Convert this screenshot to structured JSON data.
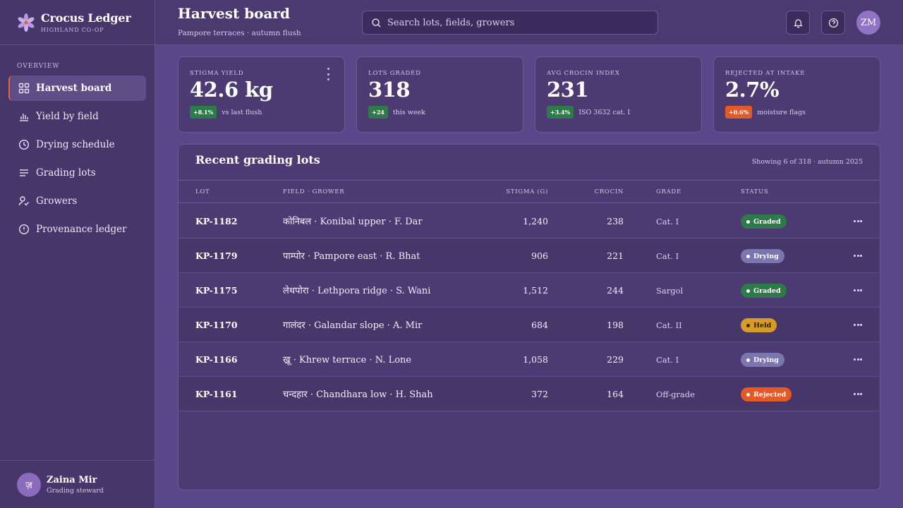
{
  "brand": {
    "name": "Crocus Ledger",
    "sub": "HIGHLAND CO-OP"
  },
  "sidebar": {
    "section": "OVERVIEW",
    "items": [
      {
        "label": "Harvest board",
        "icon": "grid-icon",
        "active": true
      },
      {
        "label": "Yield by field",
        "icon": "bar-chart-icon"
      },
      {
        "label": "Drying schedule",
        "icon": "clock-icon"
      },
      {
        "label": "Grading lots",
        "icon": "list-icon"
      },
      {
        "label": "Growers",
        "icon": "user-check-icon"
      },
      {
        "label": "Provenance ledger",
        "icon": "alert-circle-icon"
      }
    ]
  },
  "user": {
    "initial": "ज़",
    "name": "Zaina Mir",
    "role": "Grading steward"
  },
  "header": {
    "title": "Harvest board",
    "subtitle": "Pampore terraces · autumn flush",
    "search_placeholder": "Search lots, fields, growers",
    "avatar_initials": "ZM"
  },
  "stats": [
    {
      "label": "STIGMA YIELD",
      "value": "42.6 kg",
      "delta": "+8.1%",
      "delta_kind": "up",
      "foot": "vs last flush"
    },
    {
      "label": "LOTS GRADED",
      "value": "318",
      "delta": "+24",
      "delta_kind": "up",
      "foot": "this week"
    },
    {
      "label": "AVG CROCIN INDEX",
      "value": "231",
      "delta": "+3.4%",
      "delta_kind": "up",
      "foot": "ISO 3632 cat. I"
    },
    {
      "label": "REJECTED AT INTAKE",
      "value": "2.7%",
      "delta": "+0.6%",
      "delta_kind": "warn",
      "foot": "moisture flags"
    }
  ],
  "table": {
    "title": "Recent grading lots",
    "meta": "Showing 6 of 318 · autumn 2025",
    "columns": {
      "lot": "LOT",
      "field": "FIELD · GROWER",
      "stigma": "STIGMA (G)",
      "crocin": "CROCIN",
      "grade": "GRADE",
      "status": "STATUS"
    },
    "rows": [
      {
        "lot": "KP-1182",
        "field": "कोनिबल · Konibal upper · F. Dar",
        "stigma": "1,240",
        "crocin": "238",
        "grade": "Cat. I",
        "status": "Graded",
        "status_color": "#2f7a4a"
      },
      {
        "lot": "KP-1179",
        "field": "पाम्पोर · Pampore east · R. Bhat",
        "stigma": "906",
        "crocin": "221",
        "grade": "Cat. I",
        "status": "Drying",
        "status_color": "#7b76b0"
      },
      {
        "lot": "KP-1175",
        "field": "लेथपोरा · Lethpora ridge · S. Wani",
        "stigma": "1,512",
        "crocin": "244",
        "grade": "Sargol",
        "status": "Graded",
        "status_color": "#2f7a4a"
      },
      {
        "lot": "KP-1170",
        "field": "गालंदर · Galandar slope · A. Mir",
        "stigma": "684",
        "crocin": "198",
        "grade": "Cat. II",
        "status": "Held",
        "status_color": "#d89a2b"
      },
      {
        "lot": "KP-1166",
        "field": "ख्रू · Khrew terrace · N. Lone",
        "stigma": "1,058",
        "crocin": "229",
        "grade": "Cat. I",
        "status": "Drying",
        "status_color": "#7b76b0"
      },
      {
        "lot": "KP-1161",
        "field": "चन्दहार · Chandhara low · H. Shah",
        "stigma": "372",
        "crocin": "164",
        "grade": "Off-grade",
        "status": "Rejected",
        "status_color": "#e25a26"
      }
    ]
  },
  "colors": {
    "accent": "#e0643a",
    "sidebar_bg": "#463669",
    "page_bg": "#5a478a"
  }
}
